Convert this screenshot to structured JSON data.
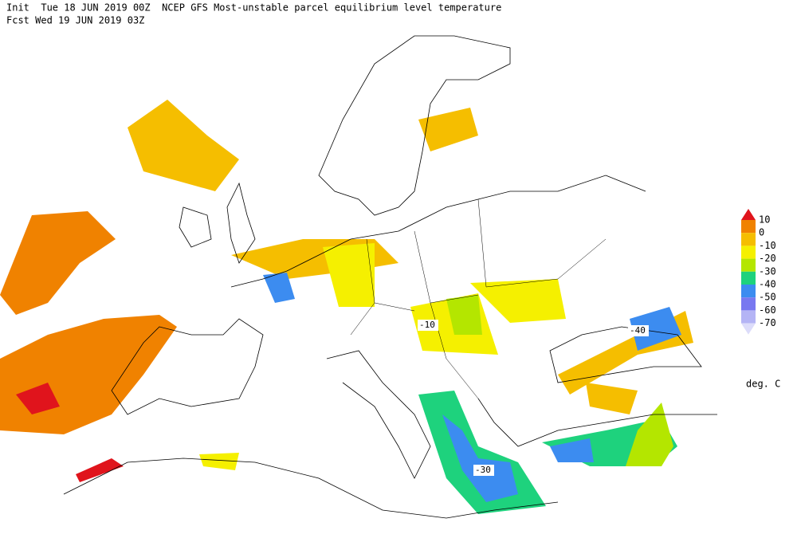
{
  "header": {
    "line1": "Init  Tue 18 JUN 2019 00Z  NCEP GFS Most-unstable parcel equilibrium level temperature",
    "line2": "Fcst Wed 19 JUN 2019 03Z"
  },
  "legend": {
    "colors": [
      "#e0141c",
      "#f08200",
      "#f5be00",
      "#f5f000",
      "#b4e600",
      "#1ed27d",
      "#3c8cf0",
      "#7878f0",
      "#b4b4f5",
      "#dcdcfa"
    ],
    "labels": [
      "10",
      "0",
      "-10",
      "-20",
      "-30",
      "-40",
      "-50",
      "-60",
      "-70"
    ],
    "unit": "deg. C"
  },
  "contour_labels": [
    "-10",
    "-40",
    "-30"
  ]
}
